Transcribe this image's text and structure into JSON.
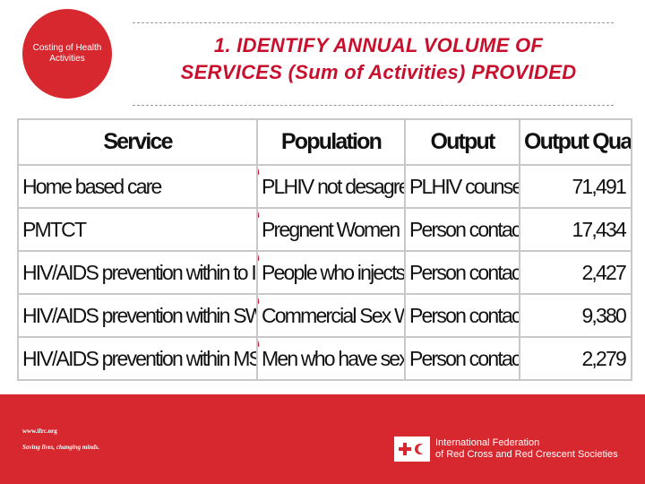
{
  "badge": {
    "text": "Costing of Health Activities"
  },
  "title": {
    "line1": "1. IDENTIFY ANNUAL VOLUME OF",
    "line2": "SERVICES (Sum of Activities) PROVIDED"
  },
  "table": {
    "headers": [
      "Service",
      "Population",
      "Output",
      "Output Quantity"
    ],
    "rows": [
      {
        "service": "Home based care",
        "population": "PLHIV not desagregated",
        "output": "PLHIV counselled",
        "quantity": "71,491"
      },
      {
        "service": "PMTCT",
        "population": "Pregnent Women deliver",
        "output": "Person contacted",
        "quantity": "17,434"
      },
      {
        "service": "HIV/AIDS prevention within to IDUs",
        "population": "People who injects drugs",
        "output": "Person contacted",
        "quantity": "2,427"
      },
      {
        "service": "HIV/AIDS prevention within SWs",
        "population": "Commercial Sex Worker",
        "output": "Person contacted",
        "quantity": "9,380"
      },
      {
        "service": "HIV/AIDS prevention within MSMs",
        "population": "Men who have sex with r",
        "output": "Person contacted",
        "quantity": "2,279"
      }
    ]
  },
  "footer": {
    "url": "www.ifrc.org",
    "tagline": "Saving lives, changing minds.",
    "org_line1": "International Federation",
    "org_line2": "of Red Cross and Red Crescent Societies"
  },
  "colors": {
    "brand_red": "#d7282f",
    "title_red": "#c8102e"
  }
}
